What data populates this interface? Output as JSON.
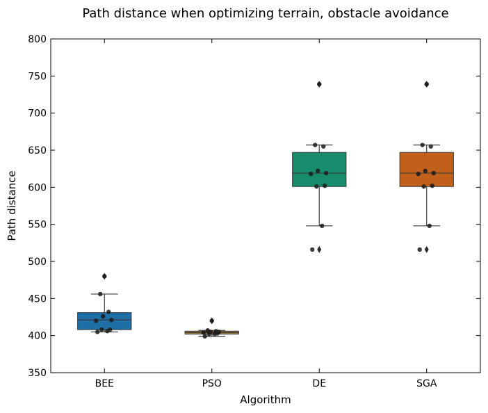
{
  "chart_data": {
    "type": "box",
    "title": "Path distance when optimizing terrain, obstacle avoidance",
    "xlabel": "Algorithm",
    "ylabel": "Path distance",
    "ylim": [
      350,
      800
    ],
    "yticks": [
      350,
      400,
      450,
      500,
      550,
      600,
      650,
      700,
      750,
      800
    ],
    "grid": false,
    "categories": [
      "BEE",
      "PSO",
      "DE",
      "SGA"
    ],
    "colors": {
      "BEE": "#1f6ea6",
      "PSO": "#9c7a3a",
      "DE": "#168c6c",
      "SGA": "#c1601b"
    },
    "boxes": [
      {
        "name": "BEE",
        "whisker_low": 405,
        "q1": 408,
        "median": 421,
        "q3": 431,
        "whisker_high": 456,
        "fliers": [
          480
        ]
      },
      {
        "name": "PSO",
        "whisker_low": 399,
        "q1": 402,
        "median": 404,
        "q3": 406,
        "whisker_high": 407,
        "fliers": [
          420
        ]
      },
      {
        "name": "DE",
        "whisker_low": 548,
        "q1": 601,
        "median": 619,
        "q3": 647,
        "whisker_high": 657,
        "fliers": [
          516,
          739
        ]
      },
      {
        "name": "SGA",
        "whisker_low": 548,
        "q1": 601,
        "median": 619,
        "q3": 647,
        "whisker_high": 657,
        "fliers": [
          516,
          739
        ]
      }
    ],
    "points": [
      {
        "name": "BEE",
        "values": [
          405,
          406,
          408,
          408,
          420,
          421,
          426,
          432,
          456,
          480
        ]
      },
      {
        "name": "PSO",
        "values": [
          399,
          402,
          402,
          403,
          404,
          405,
          405,
          406,
          407,
          420
        ]
      },
      {
        "name": "DE",
        "values": [
          516,
          548,
          601,
          602,
          618,
          619,
          622,
          655,
          657,
          739
        ]
      },
      {
        "name": "SGA",
        "values": [
          516,
          548,
          601,
          602,
          618,
          619,
          622,
          655,
          657,
          739
        ]
      }
    ]
  }
}
